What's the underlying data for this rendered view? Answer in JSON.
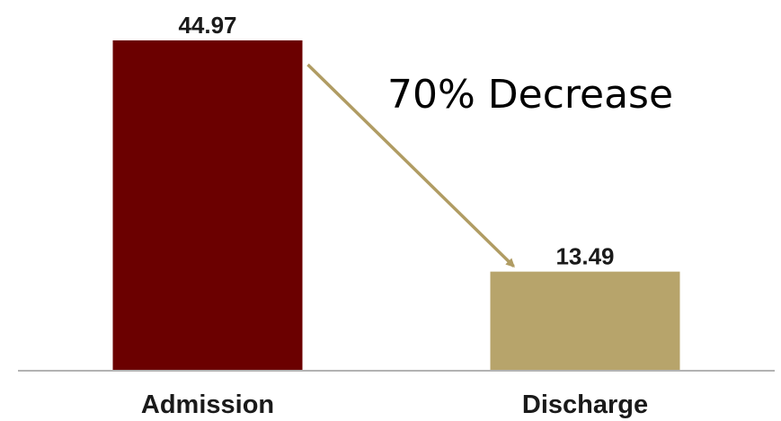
{
  "chart_data": {
    "type": "bar",
    "categories": [
      "Admission",
      "Discharge"
    ],
    "values": [
      44.97,
      13.49
    ],
    "value_labels": [
      "44.97",
      "13.49"
    ],
    "colors": [
      "#6b0000",
      "#b7a46b"
    ],
    "ylim": [
      0,
      44.97
    ],
    "grid": false,
    "legend": "none",
    "annotation": {
      "text": "70% Decrease",
      "arrow_color": "#b09c63",
      "from_category": "Admission",
      "to_category": "Discharge"
    }
  }
}
